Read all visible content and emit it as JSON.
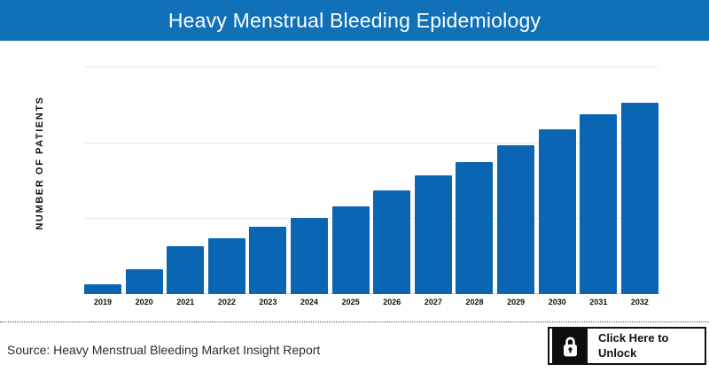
{
  "header": {
    "title": "Heavy Menstrual Bleeding Epidemiology",
    "bg_color": "#1070b8",
    "text_color": "#ffffff"
  },
  "chart_data": {
    "type": "bar",
    "title": "Heavy Menstrual Bleeding Epidemiology",
    "categories": [
      "2019",
      "2020",
      "2021",
      "2022",
      "2023",
      "2024",
      "2025",
      "2026",
      "2027",
      "2028",
      "2029",
      "2030",
      "2031",
      "2032"
    ],
    "values": [
      5,
      13,
      25,
      29,
      35,
      40,
      46,
      54,
      62,
      69,
      78,
      86,
      94,
      100
    ],
    "units": "relative (y-axis has no tick labels; 2032 bar = 100)",
    "xlabel": "",
    "ylabel": "NUMBER OF PATIENTS",
    "ylim": [
      0,
      119
    ],
    "grid": "horizontal, 3 light gridlines above baseline",
    "legend": false,
    "bar_color": "#0a66b2"
  },
  "footer": {
    "source": "Source: Heavy Menstrual Bleeding Market Insight Report",
    "unlock_button": {
      "label_line1": "Click Here to",
      "label_line2": "Unlock",
      "icon": "lock-icon"
    }
  }
}
